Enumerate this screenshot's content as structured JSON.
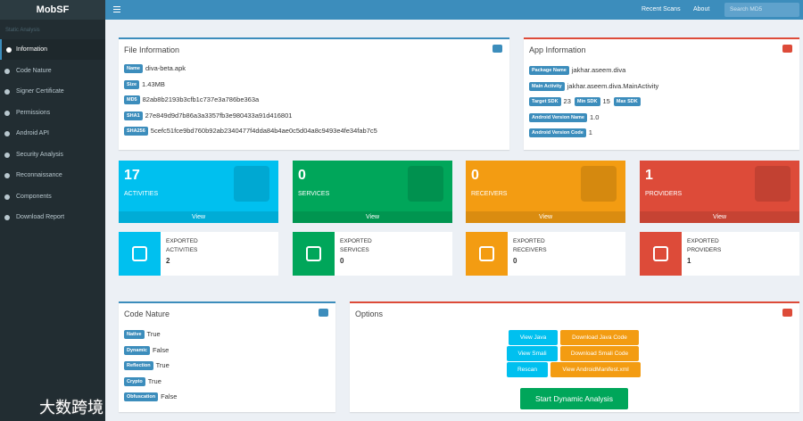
{
  "header": {
    "logo": "MobSF",
    "links": [
      "Recent Scans",
      "About"
    ],
    "search_placeholder": "Search MD5"
  },
  "sidebar": {
    "section": "Static Analysis",
    "items": [
      "Information",
      "Code Nature",
      "Signer Certificate",
      "Permissions",
      "Android API",
      "Security Analysis",
      "Reconnaissance",
      "Components",
      "Download Report"
    ]
  },
  "file_info": {
    "title": "File Information",
    "rows": [
      {
        "label": "Name",
        "value": "diva-beta.apk"
      },
      {
        "label": "Size",
        "value": "1.43MB"
      },
      {
        "label": "MD5",
        "value": "82ab8b2193b3cfb1c737e3a786be363a"
      },
      {
        "label": "SHA1",
        "value": "27e849d9d7b86a3a3357fb3e980433a91d416801"
      },
      {
        "label": "SHA256",
        "value": "5cefc51fce9bd760b92ab2340477f4dda84b4ae0c5d04a8c9493e4fe34fab7c5"
      }
    ]
  },
  "app_info": {
    "title": "App Information",
    "rows": [
      [
        {
          "label": "Package Name",
          "value": "jakhar.aseem.diva"
        }
      ],
      [
        {
          "label": "Main Activity",
          "value": "jakhar.aseem.diva.MainActivity"
        }
      ],
      [
        {
          "label": "Target SDK",
          "value": 23
        },
        {
          "label": "Min SDK",
          "value": 15
        },
        {
          "label": "Max SDK"
        }
      ],
      [
        {
          "label": "Android Version Name",
          "value": "1.0"
        }
      ],
      [
        {
          "label": "Android Version Code",
          "value": 1
        }
      ]
    ]
  },
  "stats": [
    {
      "count": 17,
      "label": "ACTIVITIES",
      "link": "View"
    },
    {
      "count": 0,
      "label": "SERVICES",
      "link": "View"
    },
    {
      "count": 0,
      "label": "RECEIVERS",
      "link": "View"
    },
    {
      "count": 1,
      "label": "PROVIDERS",
      "link": "View"
    }
  ],
  "exported": [
    {
      "label": "EXPORTED ACTIVITIES",
      "count": 2
    },
    {
      "label": "EXPORTED SERVICES",
      "count": 0
    },
    {
      "label": "EXPORTED RECEIVERS",
      "count": 0
    },
    {
      "label": "EXPORTED PROVIDERS",
      "count": 1
    }
  ],
  "code_nature": {
    "title": "Code Nature",
    "rows": [
      {
        "label": "Native",
        "value": "True"
      },
      {
        "label": "Dynamic",
        "value": "False"
      },
      {
        "label": "Reflection",
        "value": "True"
      },
      {
        "label": "Crypto",
        "value": "True"
      },
      {
        "label": "Obfuscation",
        "value": "False"
      }
    ]
  },
  "options": {
    "title": "Options",
    "buttons": [
      "View Java",
      "Download Java Code",
      "View Smali",
      "Download Smali Code",
      "Rescan",
      "View AndroidManifest.xml"
    ],
    "primary": "Start Dynamic Analysis"
  },
  "watermark": "大数跨境"
}
